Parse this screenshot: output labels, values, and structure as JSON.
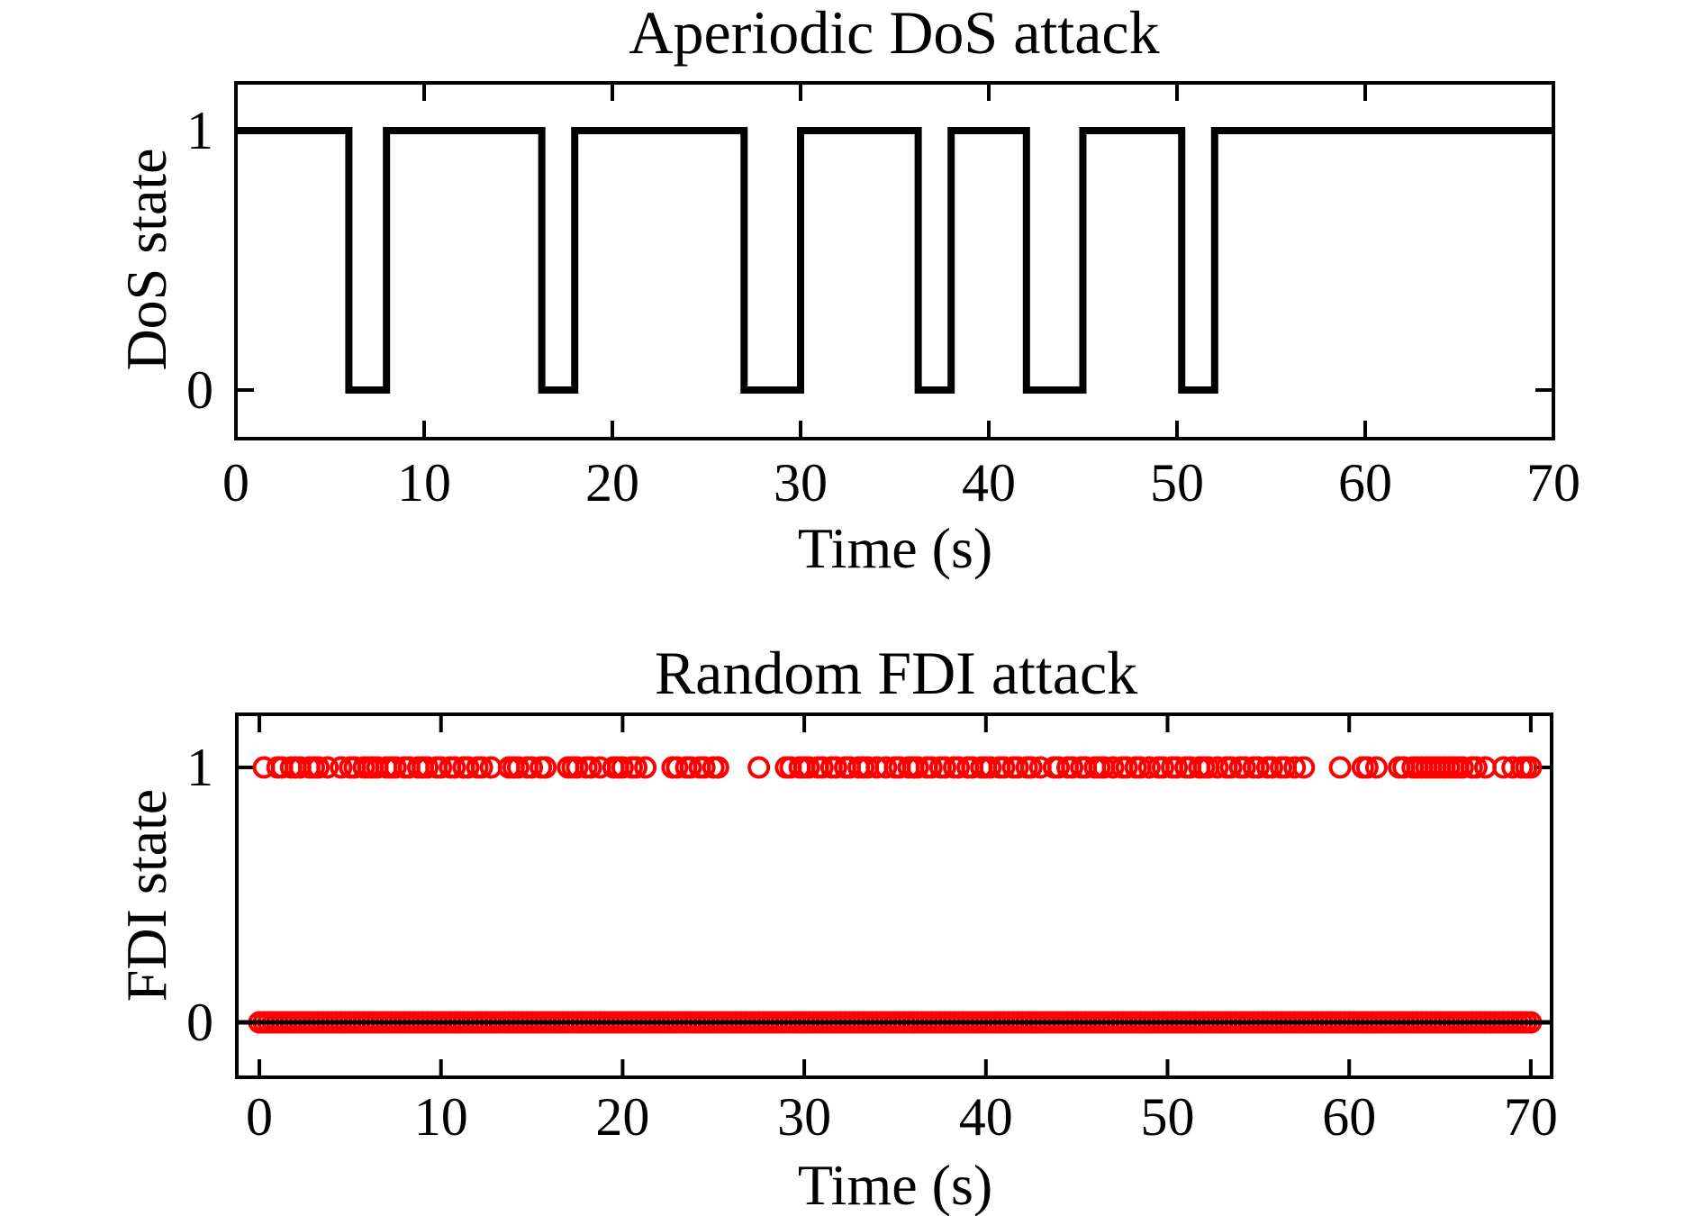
{
  "figure_background": "#FFFFFF",
  "chart_data": [
    {
      "id": "dos",
      "type": "line",
      "title": "Aperiodic DoS attack",
      "xlabel": "Time (s)",
      "ylabel": "DoS state",
      "xlim": [
        0,
        70
      ],
      "ylim": [
        -0.19,
        1.18
      ],
      "xticks": [
        0,
        10,
        20,
        30,
        40,
        50,
        60,
        70
      ],
      "yticks": [
        1,
        0
      ],
      "grid": false,
      "line_color": "#000000",
      "signal": {
        "high_value": 1,
        "low_value": 0,
        "start": 0,
        "end": 70,
        "start_level": 1,
        "low_intervals": [
          [
            6,
            8
          ],
          [
            16.25,
            18
          ],
          [
            27,
            30
          ],
          [
            36.25,
            38
          ],
          [
            42,
            45
          ],
          [
            50.25,
            52
          ]
        ]
      }
    },
    {
      "id": "fdi",
      "type": "scatter",
      "title": "Random FDI attack",
      "xlabel": "Time (s)",
      "ylabel": "FDI state",
      "xlim": [
        -1.25,
        71.25
      ],
      "ylim": [
        -0.22,
        1.21
      ],
      "xticks": [
        0,
        10,
        20,
        30,
        40,
        50,
        60,
        70
      ],
      "yticks": [
        1,
        0
      ],
      "grid": false,
      "marker": "open-circle",
      "marker_color": "#FF0000",
      "zero_line_color": "#000000",
      "ones_times": [
        0.25,
        1.0,
        1.25,
        1.75,
        2.0,
        2.25,
        2.75,
        3.0,
        3.25,
        3.75,
        4.5,
        5.0,
        5.25,
        5.75,
        6.0,
        6.25,
        6.5,
        7.0,
        7.25,
        7.5,
        8.0,
        8.25,
        8.75,
        9.0,
        9.25,
        9.75,
        10.0,
        10.5,
        10.75,
        11.25,
        11.5,
        12.0,
        12.25,
        12.75,
        13.75,
        14.0,
        14.25,
        14.75,
        15.0,
        15.5,
        15.75,
        17.0,
        17.25,
        17.5,
        18.0,
        18.25,
        18.75,
        19.5,
        19.75,
        20.0,
        20.5,
        20.75,
        21.25,
        22.75,
        23.0,
        23.5,
        23.75,
        24.25,
        24.5,
        25.0,
        25.25,
        27.5,
        29.0,
        29.25,
        29.75,
        30.0,
        30.25,
        30.75,
        31.0,
        31.5,
        31.75,
        32.25,
        32.5,
        33.0,
        33.25,
        33.5,
        34.0,
        34.5,
        35.0,
        35.25,
        35.75,
        36.0,
        36.25,
        36.75,
        37.0,
        37.5,
        37.75,
        38.25,
        38.5,
        39.0,
        39.25,
        39.75,
        40.0,
        40.25,
        40.75,
        41.0,
        41.5,
        41.75,
        42.25,
        42.5,
        43.0,
        43.75,
        44.0,
        44.5,
        44.75,
        45.25,
        45.5,
        46.0,
        46.25,
        46.5,
        47.0,
        47.5,
        47.75,
        48.25,
        48.5,
        49.0,
        49.5,
        49.75,
        50.25,
        50.5,
        51.0,
        51.25,
        51.75,
        52.0,
        52.25,
        52.75,
        53.25,
        53.5,
        54.0,
        54.25,
        54.75,
        55.0,
        55.5,
        55.75,
        56.25,
        56.5,
        57.0,
        57.5,
        59.5,
        60.75,
        61.0,
        61.5,
        62.75,
        63.0,
        63.5,
        63.75,
        64.0,
        64.25,
        64.5,
        64.75,
        65.0,
        65.25,
        65.5,
        65.75,
        66.0,
        66.25,
        66.75,
        67.0,
        67.5,
        68.5,
        69.0,
        69.5,
        69.75,
        70.0
      ],
      "zeros_times": {
        "start": 0,
        "end": 70,
        "step": 0.25
      }
    }
  ]
}
